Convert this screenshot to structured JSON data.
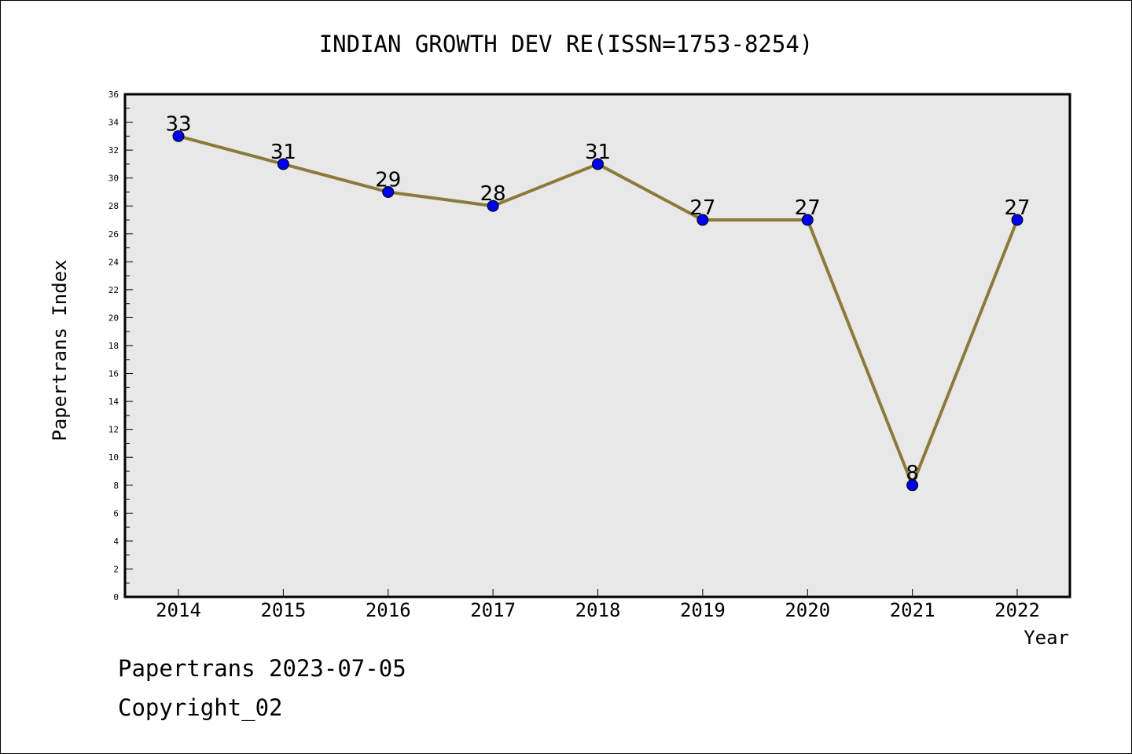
{
  "chart_data": {
    "type": "line",
    "title": "INDIAN GROWTH DEV RE(ISSN=1753-8254)",
    "xlabel": "Year",
    "ylabel": "Papertrans Index",
    "categories": [
      "2014",
      "2015",
      "2016",
      "2017",
      "2018",
      "2019",
      "2020",
      "2021",
      "2022"
    ],
    "series": [
      {
        "values": [
          33,
          31,
          29,
          28,
          31,
          27,
          27,
          8,
          27
        ]
      }
    ],
    "data_labels": [
      "33",
      "31",
      "29",
      "28",
      "31",
      "27",
      "27",
      "8",
      "27"
    ],
    "ylim": [
      0,
      36
    ],
    "y_ticks": [
      "0",
      "2",
      "4",
      "6",
      "8",
      "10",
      "12",
      "14",
      "16",
      "18",
      "20",
      "22",
      "24",
      "26",
      "28",
      "30",
      "32",
      "34",
      "36"
    ],
    "grid": false,
    "legend": "none",
    "colors": {
      "line": "#8b7a3a",
      "marker": "#0000ee",
      "plot_background": "#e8e8e8"
    }
  },
  "footer": {
    "line1": "Papertrans 2023-07-05",
    "line2": "Copyright_02"
  }
}
